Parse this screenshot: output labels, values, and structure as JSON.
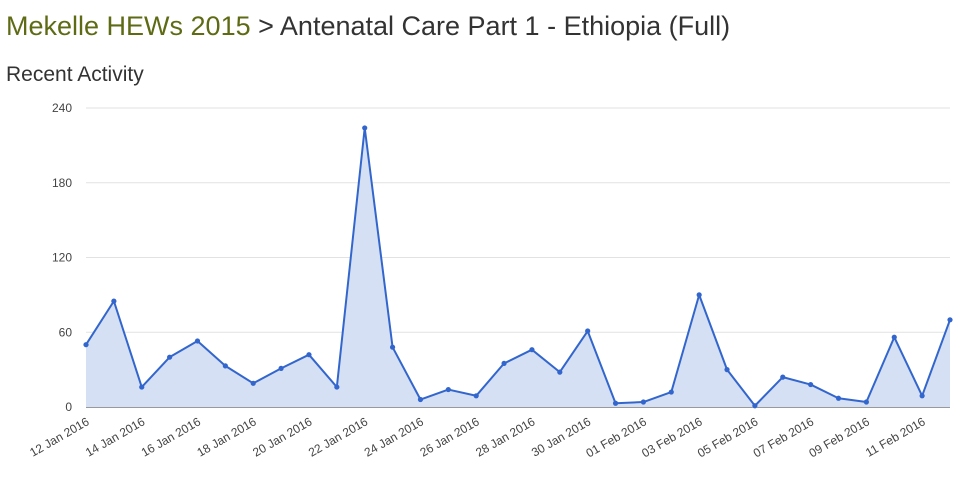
{
  "header": {
    "project_link": "Mekelle HEWs 2015",
    "separator": ">",
    "current_page": "Antenatal Care Part 1 - Ethiopia (Full)"
  },
  "section": {
    "title": "Recent Activity"
  },
  "colors": {
    "line": "#3366cc",
    "area_fill": "#d5e0f5",
    "grid": "#e2e2e2",
    "baseline": "#333333",
    "link": "#5f6b14"
  },
  "chart_data": {
    "type": "area",
    "title": "",
    "xlabel": "",
    "ylabel": "",
    "ylim": [
      0,
      240
    ],
    "yticks": [
      0,
      60,
      120,
      180,
      240
    ],
    "grid": true,
    "x": [
      "12 Jan 2016",
      "13 Jan 2016",
      "14 Jan 2016",
      "15 Jan 2016",
      "16 Jan 2016",
      "17 Jan 2016",
      "18 Jan 2016",
      "19 Jan 2016",
      "20 Jan 2016",
      "21 Jan 2016",
      "22 Jan 2016",
      "23 Jan 2016",
      "24 Jan 2016",
      "25 Jan 2016",
      "26 Jan 2016",
      "27 Jan 2016",
      "28 Jan 2016",
      "29 Jan 2016",
      "30 Jan 2016",
      "31 Jan 2016",
      "01 Feb 2016",
      "02 Feb 2016",
      "03 Feb 2016",
      "04 Feb 2016",
      "05 Feb 2016",
      "06 Feb 2016",
      "07 Feb 2016",
      "08 Feb 2016",
      "09 Feb 2016",
      "10 Feb 2016",
      "11 Feb 2016",
      "12 Feb 2016"
    ],
    "x_tick_labels": [
      "12 Jan 2016",
      "14 Jan 2016",
      "16 Jan 2016",
      "18 Jan 2016",
      "20 Jan 2016",
      "22 Jan 2016",
      "24 Jan 2016",
      "26 Jan 2016",
      "28 Jan 2016",
      "30 Jan 2016",
      "01 Feb 2016",
      "03 Feb 2016",
      "05 Feb 2016",
      "07 Feb 2016",
      "09 Feb 2016",
      "11 Feb 2016"
    ],
    "series": [
      {
        "values": [
          50,
          85,
          16,
          40,
          53,
          33,
          19,
          31,
          42,
          16,
          224,
          48,
          6,
          14,
          9,
          35,
          46,
          28,
          61,
          3,
          4,
          12,
          90,
          30,
          1,
          24,
          18,
          7,
          4,
          56,
          9,
          70
        ]
      }
    ]
  }
}
